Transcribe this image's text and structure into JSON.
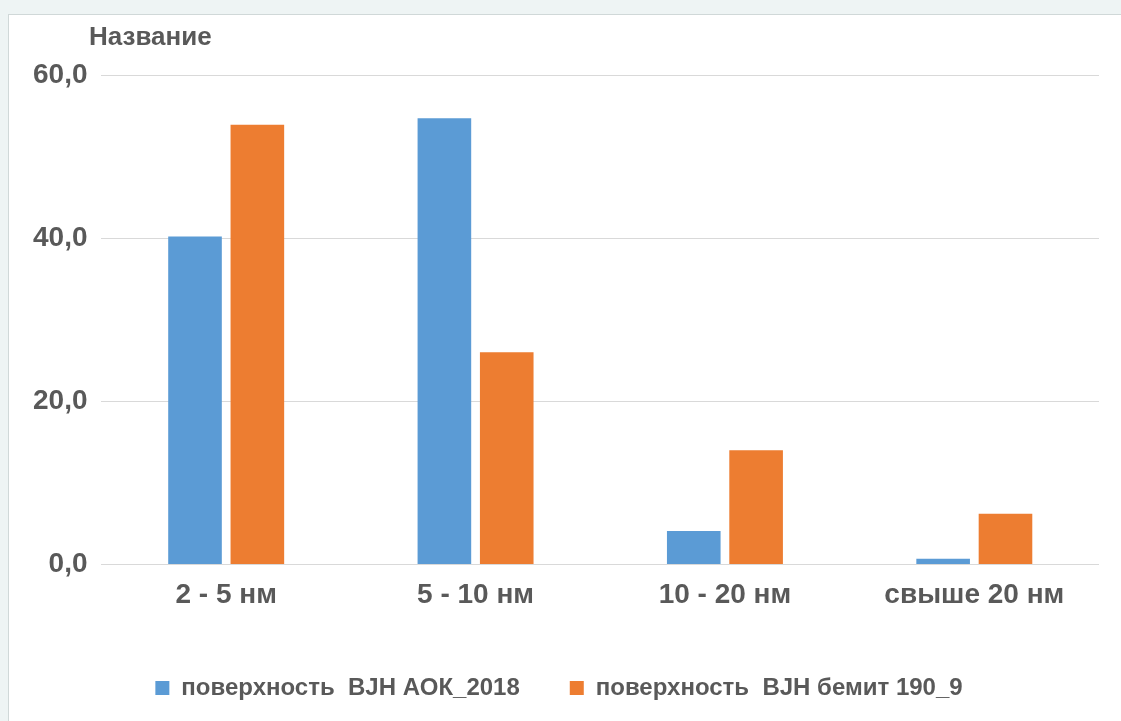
{
  "chart_data": {
    "type": "bar",
    "ylabel": "Название",
    "categories": [
      "2 - 5 нм",
      "5 - 10 нм",
      "10 - 20 нм",
      "свыше 20 нм"
    ],
    "series": [
      {
        "name": "поверхность  BJH АОК_2018",
        "color": "#5b9bd5",
        "values": [
          40.2,
          54.7,
          4.1,
          0.7
        ]
      },
      {
        "name": "поверхность  BJH бемит 190_9",
        "color": "#ed7d31",
        "values": [
          53.9,
          26.0,
          14.0,
          6.2
        ]
      }
    ],
    "ylim": [
      0,
      60
    ],
    "yticks": [
      {
        "value": 0,
        "label": "0,0"
      },
      {
        "value": 20,
        "label": "20,0"
      },
      {
        "value": 40,
        "label": "40,0"
      },
      {
        "value": 60,
        "label": "60,0"
      }
    ],
    "grid": "y",
    "legend": "bottom"
  }
}
